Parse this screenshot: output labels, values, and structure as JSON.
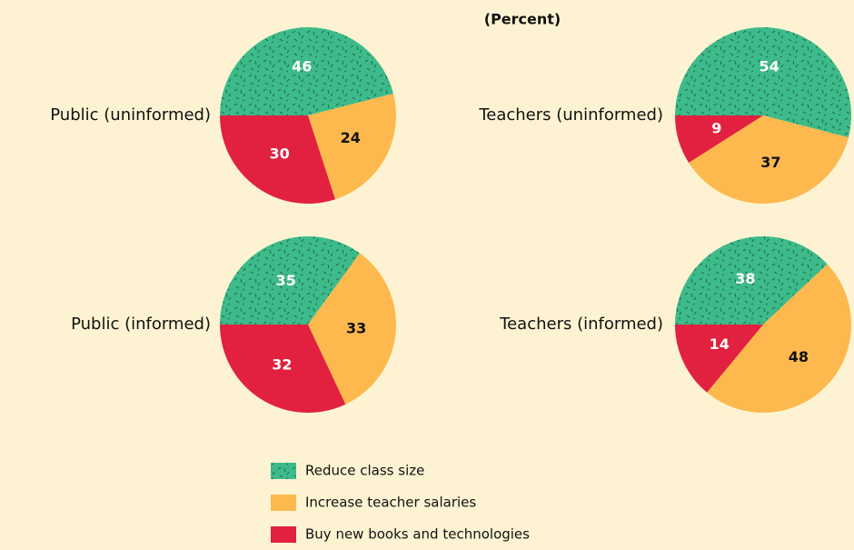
{
  "subtitle": "(Percent)",
  "legend": [
    {
      "name": "Reduce class size",
      "color": "#3dbb8a"
    },
    {
      "name": "Increase teacher salaries",
      "color": "#fdb94e"
    },
    {
      "name": "Buy new books and technologies",
      "color": "#e2203f"
    }
  ],
  "chart_data": [
    {
      "type": "pie",
      "title": "Public (uninformed)",
      "values": [
        46,
        24,
        30
      ]
    },
    {
      "type": "pie",
      "title": "Teachers (uninformed)",
      "values": [
        54,
        37,
        9
      ]
    },
    {
      "type": "pie",
      "title": "Public (informed)",
      "values": [
        35,
        33,
        32
      ]
    },
    {
      "type": "pie",
      "title": "Teachers (informed)",
      "values": [
        38,
        48,
        14
      ]
    }
  ]
}
